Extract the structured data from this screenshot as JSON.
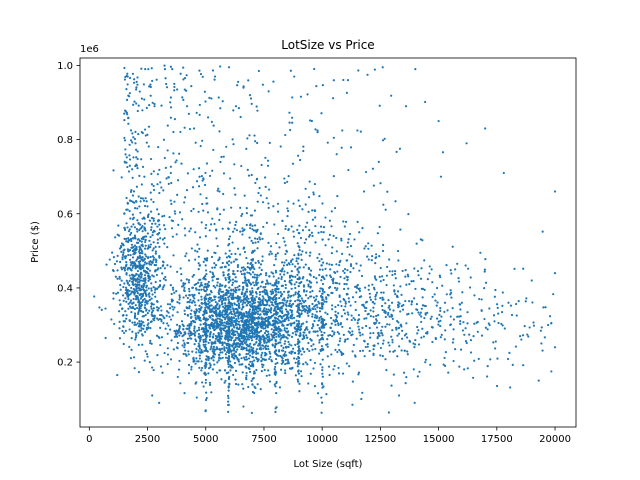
{
  "chart_data": {
    "type": "scatter",
    "title": "LotSize vs Price",
    "xlabel": "Lot Size (sqft)",
    "ylabel": "Price ($)",
    "y_offset_text": "1e6",
    "xlim": [
      -400,
      20900
    ],
    "ylim": [
      0.025,
      1.02
    ],
    "x_ticks": [
      0,
      2500,
      5000,
      7500,
      10000,
      12500,
      15000,
      17500,
      20000
    ],
    "y_ticks": [
      0.2,
      0.4,
      0.6,
      0.8,
      1.0
    ],
    "y_tick_labels": [
      "0.2",
      "0.4",
      "0.6",
      "0.8",
      "1.0"
    ],
    "grid": false,
    "series": [
      {
        "color": "#1f77b4",
        "marker_radius": 1.1,
        "approx_point_count": 4600,
        "points": [
          [
            700,
            0.265
          ],
          [
            1200,
            0.165
          ],
          [
            1300,
            0.43
          ],
          [
            1400,
            0.52
          ],
          [
            1450,
            0.38
          ],
          [
            1500,
            0.6
          ],
          [
            1500,
            0.87
          ],
          [
            1550,
            0.48
          ],
          [
            1600,
            0.44
          ],
          [
            1650,
            0.97
          ],
          [
            1700,
            0.5
          ],
          [
            1800,
            0.4
          ],
          [
            1900,
            0.36
          ],
          [
            2000,
            0.42
          ],
          [
            2100,
            0.33
          ],
          [
            2200,
            0.56
          ],
          [
            2300,
            0.46
          ],
          [
            2400,
            0.99
          ],
          [
            2500,
            0.62
          ],
          [
            2600,
            0.2
          ],
          [
            2700,
            0.11
          ],
          [
            2800,
            0.89
          ],
          [
            3000,
            0.09
          ],
          [
            3100,
            0.31
          ],
          [
            3300,
            0.95
          ],
          [
            3500,
            0.71
          ],
          [
            3800,
            0.16
          ],
          [
            4000,
            0.27
          ],
          [
            4200,
            0.89
          ],
          [
            4500,
            0.83
          ],
          [
            4700,
            0.25
          ],
          [
            4900,
            0.29
          ],
          [
            5000,
            0.07
          ],
          [
            5000,
            0.195
          ],
          [
            5000,
            0.275
          ],
          [
            5100,
            0.86
          ],
          [
            5200,
            0.32
          ],
          [
            5400,
            0.97
          ],
          [
            5600,
            0.3
          ],
          [
            5800,
            0.24
          ],
          [
            6000,
            0.995
          ],
          [
            6200,
            0.34
          ],
          [
            6300,
            0.89
          ],
          [
            6500,
            0.27
          ],
          [
            6800,
            0.31
          ],
          [
            6900,
            0.92
          ],
          [
            7000,
            0.14
          ],
          [
            7200,
            0.29
          ],
          [
            7500,
            0.33
          ],
          [
            7700,
            0.93
          ],
          [
            8000,
            0.26
          ],
          [
            8300,
            0.36
          ],
          [
            8500,
            0.3
          ],
          [
            8800,
            0.97
          ],
          [
            9000,
            0.39
          ],
          [
            9200,
            0.28
          ],
          [
            9500,
            0.34
          ],
          [
            9700,
            0.59
          ],
          [
            10000,
            0.31
          ],
          [
            10300,
            0.4
          ],
          [
            10500,
            0.96
          ],
          [
            10700,
            0.3
          ],
          [
            11000,
            0.26
          ],
          [
            11300,
            0.085
          ],
          [
            11500,
            0.4
          ],
          [
            11800,
            0.66
          ],
          [
            12000,
            0.33
          ],
          [
            12400,
            0.25
          ],
          [
            12600,
            0.995
          ],
          [
            13000,
            0.36
          ],
          [
            13300,
            0.11
          ],
          [
            13600,
            0.89
          ],
          [
            14000,
            0.99
          ],
          [
            14300,
            0.29
          ],
          [
            14700,
            0.45
          ],
          [
            15000,
            0.85
          ],
          [
            15100,
            0.7
          ],
          [
            15500,
            0.3
          ],
          [
            16000,
            0.36
          ],
          [
            16200,
            0.79
          ],
          [
            16500,
            0.27
          ],
          [
            17000,
            0.83
          ],
          [
            17400,
            0.31
          ],
          [
            17800,
            0.71
          ],
          [
            18000,
            0.36
          ],
          [
            18500,
            0.27
          ],
          [
            19000,
            0.42
          ],
          [
            19300,
            0.15
          ],
          [
            19700,
            0.3
          ],
          [
            20000,
            0.66
          ],
          [
            20000,
            0.44
          ],
          [
            20000,
            0.24
          ]
        ]
      }
    ]
  }
}
